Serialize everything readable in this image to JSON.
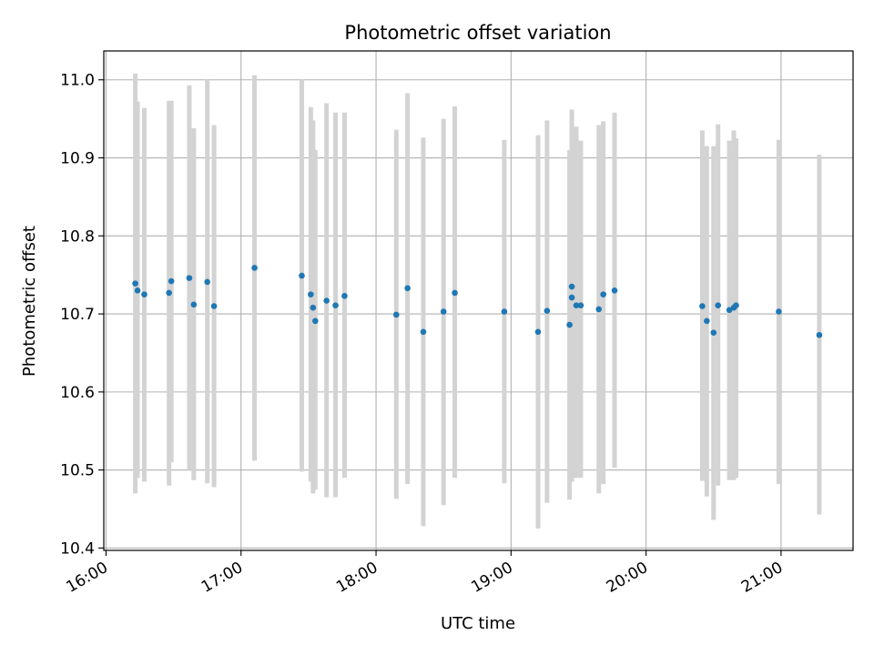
{
  "chart_data": {
    "type": "scatter",
    "title": "Photometric offset variation",
    "xlabel": "UTC time",
    "ylabel": "Photometric offset",
    "xlim": [
      "15:59",
      "21:32"
    ],
    "ylim": [
      10.397,
      11.037
    ],
    "grid": true,
    "x_ticks": [
      "16:00",
      "17:00",
      "18:00",
      "19:00",
      "20:00",
      "21:00"
    ],
    "y_ticks": [
      10.4,
      10.5,
      10.6,
      10.7,
      10.8,
      10.9,
      11.0
    ],
    "y_tick_labels": [
      "10.4",
      "10.5",
      "10.6",
      "10.7",
      "10.8",
      "10.9",
      "11.0"
    ],
    "colors": {
      "points": "#1f77b4",
      "errorbars": "#d3d3d3",
      "grid": "#b0b0b0"
    },
    "series": [
      {
        "x": [
          "16:13",
          "16:14",
          "16:17",
          "16:28",
          "16:29",
          "16:37",
          "16:39",
          "16:45",
          "16:48",
          "17:06",
          "17:27",
          "17:31",
          "17:32",
          "17:33",
          "17:38",
          "17:42",
          "17:46",
          "18:09",
          "18:14",
          "18:21",
          "18:30",
          "18:35",
          "18:57",
          "19:12",
          "19:16",
          "19:26",
          "19:27",
          "19:27",
          "19:29",
          "19:31",
          "19:39",
          "19:41",
          "19:46",
          "20:25",
          "20:27",
          "20:30",
          "20:32",
          "20:37",
          "20:39",
          "20:40",
          "20:59",
          "21:17"
        ],
        "y": [
          10.739,
          10.73,
          10.725,
          10.727,
          10.742,
          10.746,
          10.712,
          10.741,
          10.71,
          10.759,
          10.749,
          10.725,
          10.708,
          10.691,
          10.717,
          10.711,
          10.723,
          10.699,
          10.733,
          10.677,
          10.703,
          10.727,
          10.703,
          10.677,
          10.704,
          10.686,
          10.735,
          10.721,
          10.711,
          10.711,
          10.706,
          10.725,
          10.73,
          10.71,
          10.691,
          10.676,
          10.711,
          10.705,
          10.708,
          10.711,
          10.703,
          10.673
        ],
        "y_err_low": [
          10.47,
          10.49,
          10.485,
          10.48,
          10.51,
          10.5,
          10.487,
          10.483,
          10.478,
          10.512,
          10.498,
          10.485,
          10.47,
          10.475,
          10.465,
          10.465,
          10.49,
          10.463,
          10.482,
          10.428,
          10.455,
          10.49,
          10.483,
          10.425,
          10.458,
          10.462,
          10.485,
          10.49,
          10.49,
          10.49,
          10.47,
          10.482,
          10.503,
          10.486,
          10.466,
          10.436,
          10.48,
          10.487,
          10.487,
          10.49,
          10.482,
          10.443
        ],
        "y_err_high": [
          11.008,
          10.972,
          10.964,
          10.973,
          10.973,
          10.993,
          10.938,
          11.0,
          10.942,
          11.006,
          11.0,
          10.965,
          10.948,
          10.91,
          10.97,
          10.958,
          10.958,
          10.936,
          10.983,
          10.926,
          10.95,
          10.966,
          10.923,
          10.929,
          10.948,
          10.91,
          10.962,
          10.955,
          10.94,
          10.922,
          10.942,
          10.947,
          10.958,
          10.935,
          10.915,
          10.915,
          10.943,
          10.922,
          10.935,
          10.925,
          10.923,
          10.904
        ]
      }
    ]
  }
}
